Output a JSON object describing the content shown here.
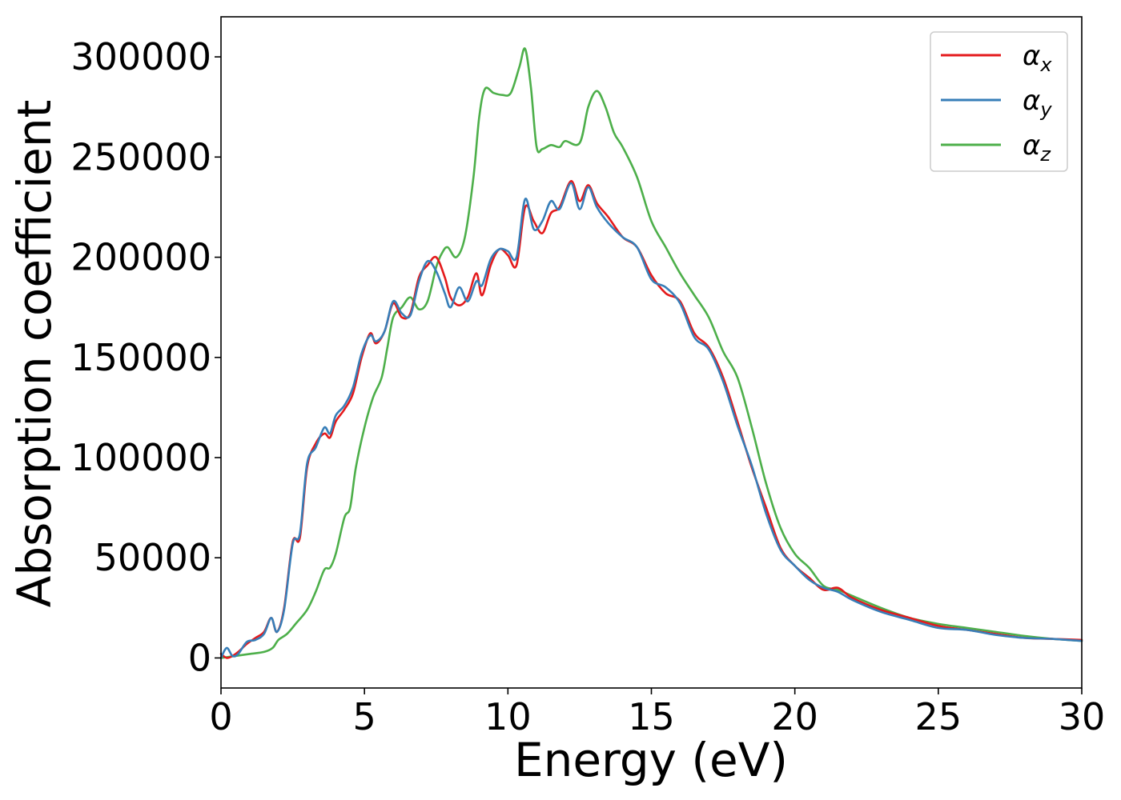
{
  "chart_data": {
    "type": "line",
    "xlabel": "Energy (eV)",
    "ylabel": "Absorption coefficient",
    "xlim": [
      0,
      30
    ],
    "ylim": [
      -15000,
      320000
    ],
    "xticks": [
      0,
      5,
      10,
      15,
      20,
      25,
      30
    ],
    "xtick_labels": [
      "0",
      "5",
      "10",
      "15",
      "20",
      "25",
      "30"
    ],
    "yticks": [
      0,
      50000,
      100000,
      150000,
      200000,
      250000,
      300000
    ],
    "ytick_labels": [
      "0",
      "50000",
      "100000",
      "150000",
      "200000",
      "250000",
      "300000"
    ],
    "grid": false,
    "legend_position": "top-right",
    "series": [
      {
        "name": "α_x",
        "legend_base": "α",
        "legend_sub": "x",
        "color": "#e41a1c",
        "x": [
          0,
          0.2,
          0.4,
          0.6,
          0.9,
          1.2,
          1.5,
          1.75,
          1.95,
          2.2,
          2.5,
          2.75,
          3.0,
          3.3,
          3.6,
          3.8,
          4.0,
          4.3,
          4.6,
          4.9,
          5.2,
          5.4,
          5.7,
          6.0,
          6.3,
          6.6,
          6.9,
          7.2,
          7.5,
          7.8,
          8.0,
          8.3,
          8.6,
          8.9,
          9.1,
          9.4,
          9.7,
          10.0,
          10.3,
          10.6,
          10.9,
          11.2,
          11.5,
          11.8,
          12.2,
          12.5,
          12.8,
          13.1,
          13.5,
          14.0,
          14.5,
          15.0,
          15.5,
          16.0,
          16.5,
          17.0,
          17.5,
          18.0,
          18.5,
          19.0,
          19.5,
          20.0,
          20.5,
          21.0,
          21.5,
          22.0,
          23.0,
          24.0,
          25.0,
          26.0,
          27.0,
          28.0,
          29.0,
          30.0
        ],
        "y": [
          2000,
          0,
          1000,
          3000,
          7000,
          10000,
          13000,
          20000,
          13000,
          25000,
          58000,
          60000,
          95000,
          107000,
          112000,
          110000,
          118000,
          124000,
          132000,
          150000,
          162000,
          157000,
          163000,
          177000,
          170000,
          172000,
          190000,
          196000,
          200000,
          190000,
          180000,
          176000,
          180000,
          192000,
          181000,
          196000,
          204000,
          201000,
          196000,
          225000,
          218000,
          212000,
          222000,
          225000,
          238000,
          228000,
          236000,
          227000,
          220000,
          210000,
          205000,
          191000,
          182000,
          178000,
          162000,
          155000,
          140000,
          118000,
          95000,
          75000,
          55000,
          46000,
          40000,
          34000,
          35000,
          30000,
          24000,
          20000,
          16000,
          14000,
          12000,
          10000,
          9500,
          9000
        ]
      },
      {
        "name": "α_y",
        "legend_base": "α",
        "legend_sub": "y",
        "color": "#377eb8",
        "x": [
          0,
          0.2,
          0.4,
          0.6,
          0.9,
          1.2,
          1.5,
          1.75,
          1.95,
          2.2,
          2.5,
          2.75,
          3.0,
          3.3,
          3.6,
          3.8,
          4.0,
          4.3,
          4.6,
          4.9,
          5.2,
          5.4,
          5.7,
          6.0,
          6.3,
          6.6,
          6.9,
          7.2,
          7.5,
          7.8,
          8.0,
          8.3,
          8.6,
          8.9,
          9.1,
          9.4,
          9.7,
          10.0,
          10.3,
          10.6,
          10.9,
          11.2,
          11.5,
          11.8,
          12.2,
          12.5,
          12.8,
          13.1,
          13.5,
          14.0,
          14.5,
          15.0,
          15.5,
          16.0,
          16.5,
          17.0,
          17.5,
          18.0,
          18.5,
          19.0,
          19.5,
          20.0,
          20.5,
          21.0,
          21.5,
          22.0,
          23.0,
          24.0,
          25.0,
          26.0,
          27.0,
          28.0,
          29.0,
          30.0
        ],
        "y": [
          0,
          5000,
          1000,
          2000,
          8000,
          9000,
          12000,
          20000,
          13000,
          24000,
          57000,
          62000,
          97000,
          105000,
          115000,
          112000,
          121000,
          126000,
          135000,
          152000,
          161000,
          158000,
          163000,
          178000,
          172000,
          171000,
          188000,
          198000,
          193000,
          182000,
          175000,
          185000,
          178000,
          188000,
          186000,
          199000,
          204000,
          203000,
          200000,
          229000,
          214000,
          218000,
          228000,
          224000,
          237000,
          224000,
          235000,
          225000,
          217000,
          210000,
          205000,
          189000,
          185000,
          177000,
          160000,
          154000,
          138000,
          116000,
          96000,
          72000,
          54000,
          46000,
          39000,
          35000,
          33000,
          29000,
          23000,
          19000,
          15000,
          14000,
          11500,
          10000,
          9500,
          8500
        ]
      },
      {
        "name": "α_z",
        "legend_base": "α",
        "legend_sub": "z",
        "color": "#4daf4a",
        "x": [
          0,
          0.5,
          1.0,
          1.5,
          1.8,
          2.0,
          2.3,
          2.6,
          3.0,
          3.3,
          3.6,
          3.8,
          4.0,
          4.3,
          4.5,
          4.7,
          5.0,
          5.3,
          5.6,
          5.8,
          6.0,
          6.3,
          6.6,
          6.9,
          7.2,
          7.5,
          7.7,
          7.9,
          8.2,
          8.5,
          8.8,
          9.0,
          9.2,
          9.5,
          9.8,
          10.1,
          10.4,
          10.6,
          10.8,
          11.0,
          11.2,
          11.5,
          11.8,
          12.0,
          12.5,
          12.8,
          13.1,
          13.4,
          13.7,
          14.0,
          14.5,
          15.0,
          15.5,
          16.0,
          16.5,
          17.0,
          17.5,
          18.0,
          18.5,
          19.0,
          19.5,
          20.0,
          20.5,
          21.0,
          21.5,
          22.0,
          23.0,
          24.0,
          25.0,
          26.0,
          27.0,
          28.0,
          29.0,
          30.0
        ],
        "y": [
          0,
          1000,
          2000,
          3000,
          5000,
          9000,
          12000,
          17000,
          24000,
          33000,
          44000,
          45000,
          52000,
          70000,
          75000,
          95000,
          115000,
          130000,
          140000,
          155000,
          170000,
          175000,
          180000,
          174000,
          178000,
          195000,
          202000,
          205000,
          200000,
          210000,
          240000,
          270000,
          284000,
          282000,
          281000,
          282000,
          295000,
          304000,
          285000,
          255000,
          254000,
          256000,
          255000,
          258000,
          257000,
          275000,
          283000,
          275000,
          262000,
          255000,
          240000,
          218000,
          205000,
          192000,
          181000,
          170000,
          153000,
          140000,
          115000,
          87000,
          65000,
          52000,
          45000,
          36000,
          34000,
          31000,
          25000,
          20000,
          17000,
          15000,
          13000,
          11000,
          9500,
          8500
        ]
      }
    ]
  }
}
